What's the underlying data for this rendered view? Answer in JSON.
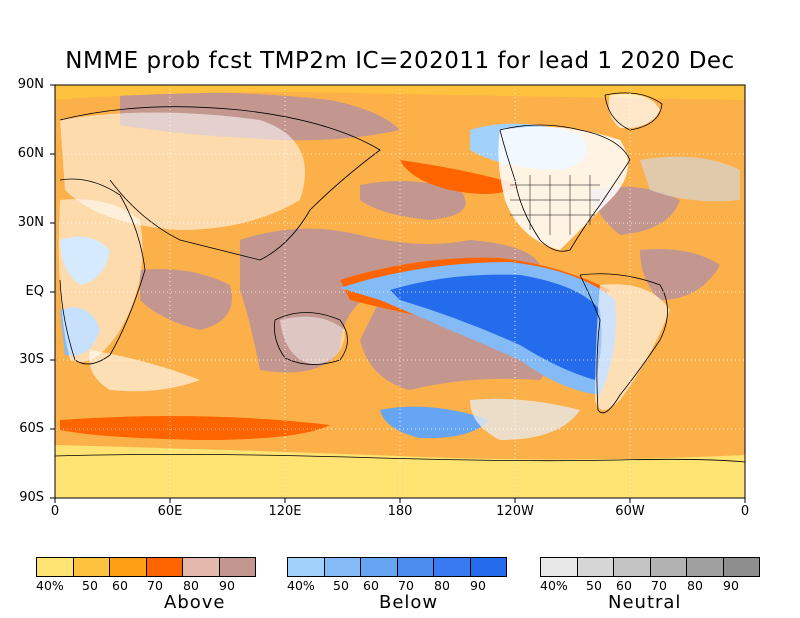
{
  "title": "NMME prob fcst TMP2m IC=202011 for lead 1 2020 Dec",
  "map": {
    "lat_labels": [
      "90N",
      "60N",
      "30N",
      "EQ",
      "30S",
      "60S",
      "90S"
    ],
    "lon_labels": [
      "0",
      "60E",
      "120E",
      "180",
      "120W",
      "60W",
      "0"
    ]
  },
  "colors": {
    "ocean_base": "#fbb04a",
    "land": "#ffffff",
    "coast": "#000000"
  },
  "legends": [
    {
      "name": "Above",
      "colors": [
        "#ffe373",
        "#ffc23f",
        "#fea016",
        "#fe6500",
        "#e4b8ad",
        "#c39790"
      ],
      "ticks": [
        "40%",
        "50",
        "60",
        "70",
        "80",
        "90"
      ]
    },
    {
      "name": "Below",
      "colors": [
        "#a2d2fb",
        "#84baf6",
        "#65a5f1",
        "#4c8ef0",
        "#3a7af0",
        "#256ced"
      ],
      "ticks": [
        "40%",
        "50",
        "60",
        "70",
        "80",
        "90"
      ]
    },
    {
      "name": "Neutral",
      "colors": [
        "#e8e8e8",
        "#d6d6d6",
        "#c4c4c4",
        "#b2b2b2",
        "#a0a0a0",
        "#8e8e8e"
      ],
      "ticks": [
        "40%",
        "50",
        "60",
        "70",
        "80",
        "90"
      ]
    }
  ]
}
